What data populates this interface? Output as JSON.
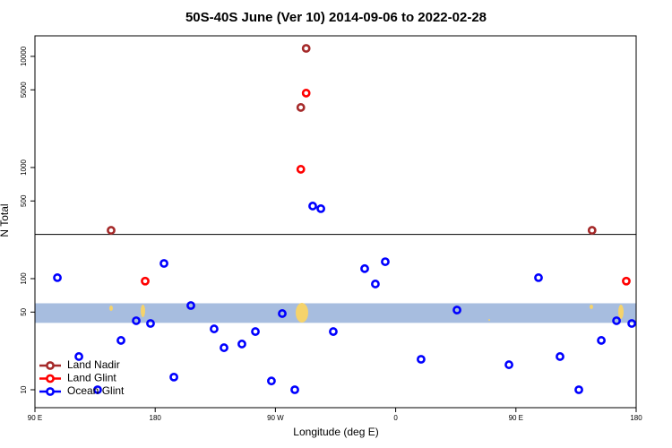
{
  "chart_data": {
    "type": "scatter",
    "title": "50S-40S June (Ver 10)   2014-09-06 to 2022-02-28",
    "x_label": "Longitude (deg E)",
    "y_label": "N Total",
    "xlim": [
      0,
      450
    ],
    "xticks": [
      {
        "value": 0,
        "label": "90 E"
      },
      {
        "value": 90,
        "label": "180"
      },
      {
        "value": 180,
        "label": "90 W"
      },
      {
        "value": 270,
        "label": "0"
      },
      {
        "value": 360,
        "label": "90 E"
      },
      {
        "value": 450,
        "label": "180"
      }
    ],
    "ylim": [
      6.9,
      15300
    ],
    "log_y": true,
    "yticks": [
      10,
      50,
      100,
      500,
      1000,
      5000,
      10000
    ],
    "hline": 250,
    "band": [
      40,
      60
    ],
    "band_color": "#a7bddf",
    "legend": "bottom-left",
    "series": [
      {
        "name": "Land Nadir",
        "color": "#a52a2a",
        "x": [
          57,
          203,
          199,
          417
        ],
        "values": [
          272,
          11800,
          3470,
          272
        ]
      },
      {
        "name": "Land Glint",
        "color": "#ff0000",
        "x": [
          82.5,
          203,
          199,
          442.6
        ],
        "values": [
          95,
          4670,
          964,
          95
        ]
      },
      {
        "name": "Ocean Glint",
        "color": "#0000ff",
        "x": [
          16.8,
          32.9,
          46.9,
          64.4,
          75.8,
          86.5,
          96.6,
          104,
          116.7,
          134.1,
          141.5,
          154.9,
          165,
          177,
          185.1,
          194.5,
          207.9,
          214,
          223.3,
          246.8,
          254.8,
          262.2,
          289,
          315.9,
          354.8,
          376.9,
          393,
          407.1,
          423.9,
          435.3,
          446.7
        ],
        "values": [
          102,
          19.9,
          10,
          27.8,
          41.8,
          39.5,
          137,
          13,
          57.3,
          35.3,
          23.9,
          25.8,
          33.4,
          12,
          48.5,
          10,
          450,
          426,
          33.4,
          123,
          89.5,
          142,
          18.8,
          52.2,
          16.8,
          102,
          19.9,
          10,
          27.8,
          41.8,
          39.5
        ]
      }
    ]
  }
}
